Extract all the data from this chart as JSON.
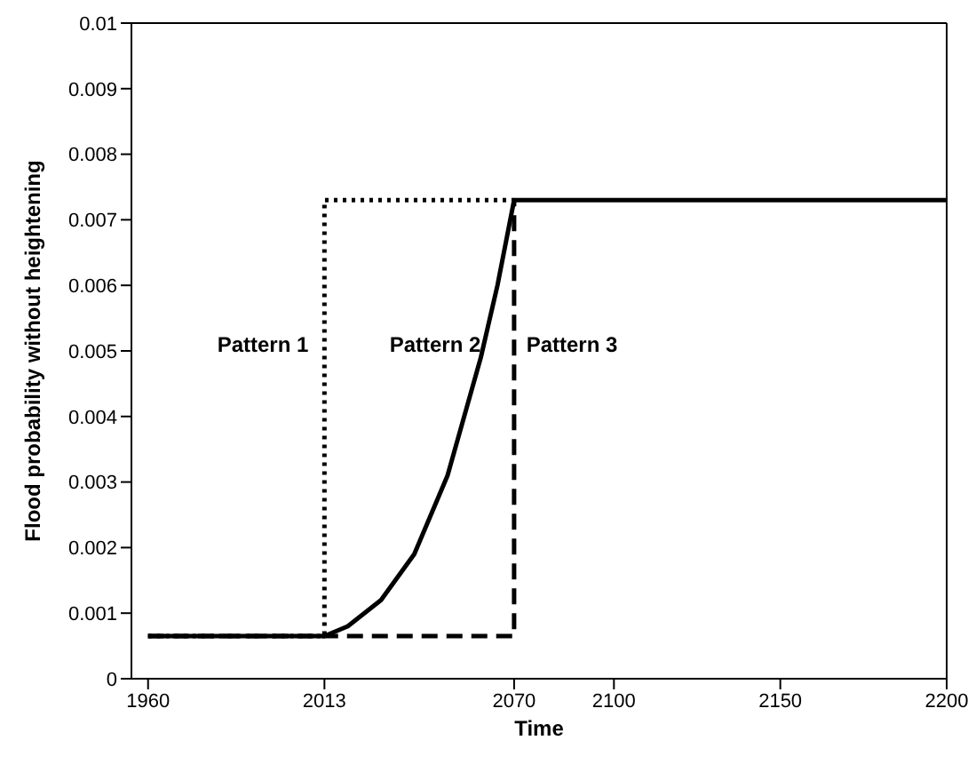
{
  "chart_data": {
    "type": "line",
    "xlabel": "Time",
    "ylabel": "Flood probability without heightening",
    "xlim": [
      1955,
      2200
    ],
    "xticks": [
      1960,
      2013,
      2070,
      2100,
      2150,
      2200
    ],
    "ylim": [
      0,
      0.01
    ],
    "yticks": [
      0,
      0.001,
      0.002,
      0.003,
      0.004,
      0.005,
      0.006,
      0.007,
      0.008,
      0.009,
      0.01
    ],
    "marker": "none",
    "series": [
      {
        "color": "#000000",
        "line_style": "dotted",
        "x": [
          1960,
          2013,
          2013,
          2070
        ],
        "values": [
          0.00065,
          0.00065,
          0.0073,
          0.0073
        ]
      },
      {
        "color": "#000000",
        "line_style": "dashed",
        "x": [
          1960,
          2070,
          2070
        ],
        "values": [
          0.00065,
          0.00065,
          0.0073
        ]
      },
      {
        "color": "#000000",
        "line_style": "solid",
        "x": [
          1960,
          2013,
          2020,
          2030,
          2040,
          2050,
          2060,
          2065,
          2070,
          2200
        ],
        "values": [
          0.00065,
          0.00065,
          0.0008,
          0.0012,
          0.0019,
          0.0031,
          0.0049,
          0.006,
          0.0073,
          0.0073
        ]
      }
    ],
    "annotations": [
      "Pattern 1",
      "Pattern 2",
      "Pattern 3"
    ]
  }
}
